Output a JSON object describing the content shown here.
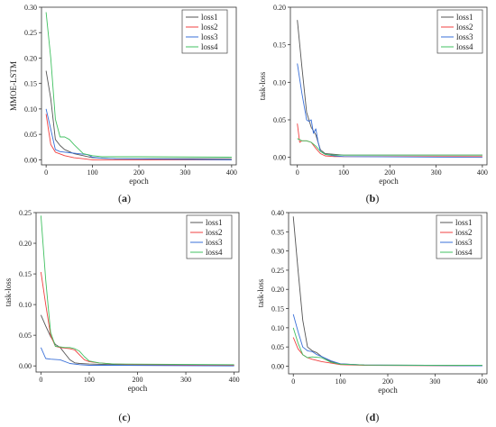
{
  "captions": [
    {
      "pre": "(",
      "letter": "a",
      "post": ")"
    },
    {
      "pre": "(",
      "letter": "b",
      "post": ")"
    },
    {
      "pre": "(",
      "letter": "c",
      "post": ")"
    },
    {
      "pre": "(",
      "letter": "d",
      "post": ")"
    }
  ],
  "series_colors": [
    "#555555",
    "#f04040",
    "#3a70d8",
    "#40c060"
  ],
  "chart_data": [
    {
      "type": "line",
      "title": "",
      "xlabel": "epoch",
      "ylabel": "MMOE-LSTM",
      "xlim": [
        -10,
        410
      ],
      "ylim": [
        -0.01,
        0.3
      ],
      "xticks": [
        0,
        100,
        200,
        300,
        400
      ],
      "yticks": [
        0.0,
        0.05,
        0.1,
        0.15,
        0.2,
        0.25,
        0.3
      ],
      "ytick_labels": [
        "0.00",
        "0.05",
        "0.10",
        "0.15",
        "0.20",
        "0.25",
        "0.30"
      ],
      "legend": "top-right",
      "series": [
        {
          "name": "loss1",
          "x": [
            0,
            10,
            20,
            30,
            40,
            50,
            60,
            80,
            100,
            150,
            400
          ],
          "y": [
            0.175,
            0.12,
            0.04,
            0.028,
            0.02,
            0.016,
            0.012,
            0.008,
            0.004,
            0.002,
            0.002
          ]
        },
        {
          "name": "loss2",
          "x": [
            0,
            5,
            10,
            20,
            40,
            60,
            80,
            100,
            200,
            400
          ],
          "y": [
            0.09,
            0.06,
            0.03,
            0.015,
            0.008,
            0.004,
            0.002,
            0.0,
            0.0,
            0.0
          ]
        },
        {
          "name": "loss3",
          "x": [
            0,
            10,
            20,
            30,
            50,
            70,
            90,
            100,
            120,
            150,
            400
          ],
          "y": [
            0.1,
            0.06,
            0.02,
            0.016,
            0.014,
            0.012,
            0.01,
            0.005,
            0.003,
            0.002,
            0.0
          ]
        },
        {
          "name": "loss4",
          "x": [
            0,
            10,
            20,
            30,
            40,
            50,
            60,
            80,
            100,
            120,
            200,
            400
          ],
          "y": [
            0.29,
            0.2,
            0.08,
            0.045,
            0.045,
            0.04,
            0.03,
            0.012,
            0.008,
            0.006,
            0.006,
            0.005
          ]
        }
      ]
    },
    {
      "type": "line",
      "title": "",
      "xlabel": "epoch",
      "ylabel": "task-loss",
      "xlim": [
        -15,
        410
      ],
      "ylim": [
        -0.01,
        0.2
      ],
      "xticks": [
        0,
        100,
        200,
        300,
        400
      ],
      "yticks": [
        0.0,
        0.05,
        0.1,
        0.15,
        0.2
      ],
      "ytick_labels": [
        "0.00",
        "0.05",
        "0.10",
        "0.15",
        "0.20"
      ],
      "legend": "top-right",
      "series": [
        {
          "name": "loss1",
          "x": [
            0,
            10,
            20,
            30,
            40,
            50,
            60,
            80,
            100,
            400
          ],
          "y": [
            0.183,
            0.12,
            0.06,
            0.04,
            0.03,
            0.01,
            0.005,
            0.004,
            0.003,
            0.003
          ]
        },
        {
          "name": "loss2",
          "x": [
            0,
            5,
            10,
            20,
            30,
            40,
            50,
            60,
            80,
            400
          ],
          "y": [
            0.045,
            0.02,
            0.022,
            0.022,
            0.02,
            0.012,
            0.005,
            0.002,
            0.001,
            0.001
          ]
        },
        {
          "name": "loss3",
          "x": [
            0,
            10,
            20,
            25,
            30,
            35,
            40,
            45,
            50,
            60,
            80,
            100,
            400
          ],
          "y": [
            0.125,
            0.085,
            0.05,
            0.048,
            0.05,
            0.032,
            0.038,
            0.02,
            0.008,
            0.004,
            0.002,
            0.001,
            0.0
          ]
        },
        {
          "name": "loss4",
          "x": [
            0,
            10,
            20,
            30,
            40,
            50,
            60,
            80,
            100,
            400
          ],
          "y": [
            0.025,
            0.022,
            0.022,
            0.02,
            0.015,
            0.008,
            0.004,
            0.003,
            0.003,
            0.003
          ]
        }
      ]
    },
    {
      "type": "line",
      "title": "",
      "xlabel": "epoch",
      "ylabel": "task-loss",
      "xlim": [
        -10,
        410
      ],
      "ylim": [
        -0.01,
        0.25
      ],
      "xticks": [
        0,
        100,
        200,
        300,
        400
      ],
      "yticks": [
        0.0,
        0.05,
        0.1,
        0.15,
        0.2,
        0.25
      ],
      "ytick_labels": [
        "0.00",
        "0.05",
        "0.10",
        "0.15",
        "0.20",
        "0.25"
      ],
      "legend": "top-right",
      "series": [
        {
          "name": "loss1",
          "x": [
            0,
            10,
            20,
            30,
            40,
            50,
            60,
            70,
            80,
            100,
            150,
            400
          ],
          "y": [
            0.083,
            0.065,
            0.048,
            0.035,
            0.03,
            0.02,
            0.01,
            0.005,
            0.004,
            0.003,
            0.002,
            0.001
          ]
        },
        {
          "name": "loss2",
          "x": [
            0,
            10,
            20,
            30,
            40,
            50,
            60,
            70,
            80,
            90,
            100,
            120,
            150,
            200,
            400
          ],
          "y": [
            0.153,
            0.1,
            0.05,
            0.032,
            0.03,
            0.029,
            0.028,
            0.026,
            0.018,
            0.01,
            0.007,
            0.005,
            0.003,
            0.002,
            0.001
          ]
        },
        {
          "name": "loss3",
          "x": [
            0,
            10,
            20,
            40,
            60,
            80,
            100,
            150,
            400
          ],
          "y": [
            0.03,
            0.012,
            0.011,
            0.01,
            0.004,
            0.002,
            0.001,
            0.001,
            0.0
          ]
        },
        {
          "name": "loss4",
          "x": [
            0,
            10,
            20,
            30,
            40,
            50,
            60,
            70,
            80,
            90,
            100,
            120,
            150,
            400
          ],
          "y": [
            0.245,
            0.14,
            0.055,
            0.032,
            0.031,
            0.03,
            0.03,
            0.028,
            0.024,
            0.015,
            0.008,
            0.005,
            0.003,
            0.002
          ]
        }
      ]
    },
    {
      "type": "line",
      "title": "",
      "xlabel": "epoch",
      "ylabel": "task-loss",
      "xlim": [
        -10,
        410
      ],
      "ylim": [
        -0.02,
        0.4
      ],
      "xticks": [
        0,
        100,
        200,
        300,
        400
      ],
      "yticks": [
        0.0,
        0.05,
        0.1,
        0.15,
        0.2,
        0.25,
        0.3,
        0.35,
        0.4
      ],
      "ytick_labels": [
        "0.00",
        "0.05",
        "0.10",
        "0.15",
        "0.20",
        "0.25",
        "0.30",
        "0.35",
        "0.40"
      ],
      "legend": "top-right",
      "series": [
        {
          "name": "loss1",
          "x": [
            0,
            10,
            20,
            30,
            40,
            50,
            60,
            80,
            100,
            150,
            400
          ],
          "y": [
            0.39,
            0.25,
            0.12,
            0.05,
            0.04,
            0.035,
            0.025,
            0.012,
            0.006,
            0.003,
            0.002
          ]
        },
        {
          "name": "loss2",
          "x": [
            0,
            10,
            20,
            30,
            40,
            60,
            80,
            100,
            150,
            400
          ],
          "y": [
            0.075,
            0.045,
            0.03,
            0.022,
            0.018,
            0.012,
            0.008,
            0.004,
            0.002,
            0.001
          ]
        },
        {
          "name": "loss3",
          "x": [
            0,
            10,
            20,
            30,
            40,
            50,
            60,
            80,
            100,
            150,
            400
          ],
          "y": [
            0.135,
            0.09,
            0.05,
            0.04,
            0.038,
            0.03,
            0.025,
            0.014,
            0.006,
            0.003,
            0.001
          ]
        },
        {
          "name": "loss4",
          "x": [
            0,
            10,
            20,
            30,
            40,
            60,
            80,
            100,
            150,
            400
          ],
          "y": [
            0.1,
            0.06,
            0.03,
            0.022,
            0.024,
            0.022,
            0.01,
            0.005,
            0.003,
            0.002
          ]
        }
      ]
    }
  ]
}
